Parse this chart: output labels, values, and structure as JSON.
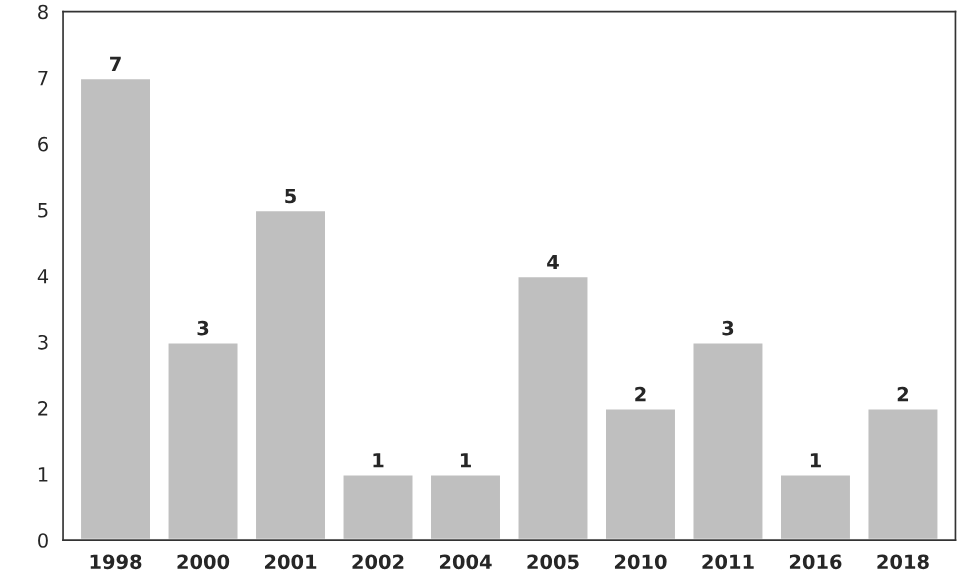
{
  "chart_data": {
    "type": "bar",
    "categories": [
      "1998",
      "2000",
      "2001",
      "2002",
      "2004",
      "2005",
      "2010",
      "2011",
      "2016",
      "2018"
    ],
    "values": [
      7,
      3,
      5,
      1,
      1,
      4,
      2,
      3,
      1,
      2
    ],
    "color": "#bfbfbf",
    "ylim": [
      0,
      8
    ],
    "yticks": [
      0,
      1,
      2,
      3,
      4,
      5,
      6,
      7,
      8
    ],
    "grid": false,
    "data_labels": true
  }
}
